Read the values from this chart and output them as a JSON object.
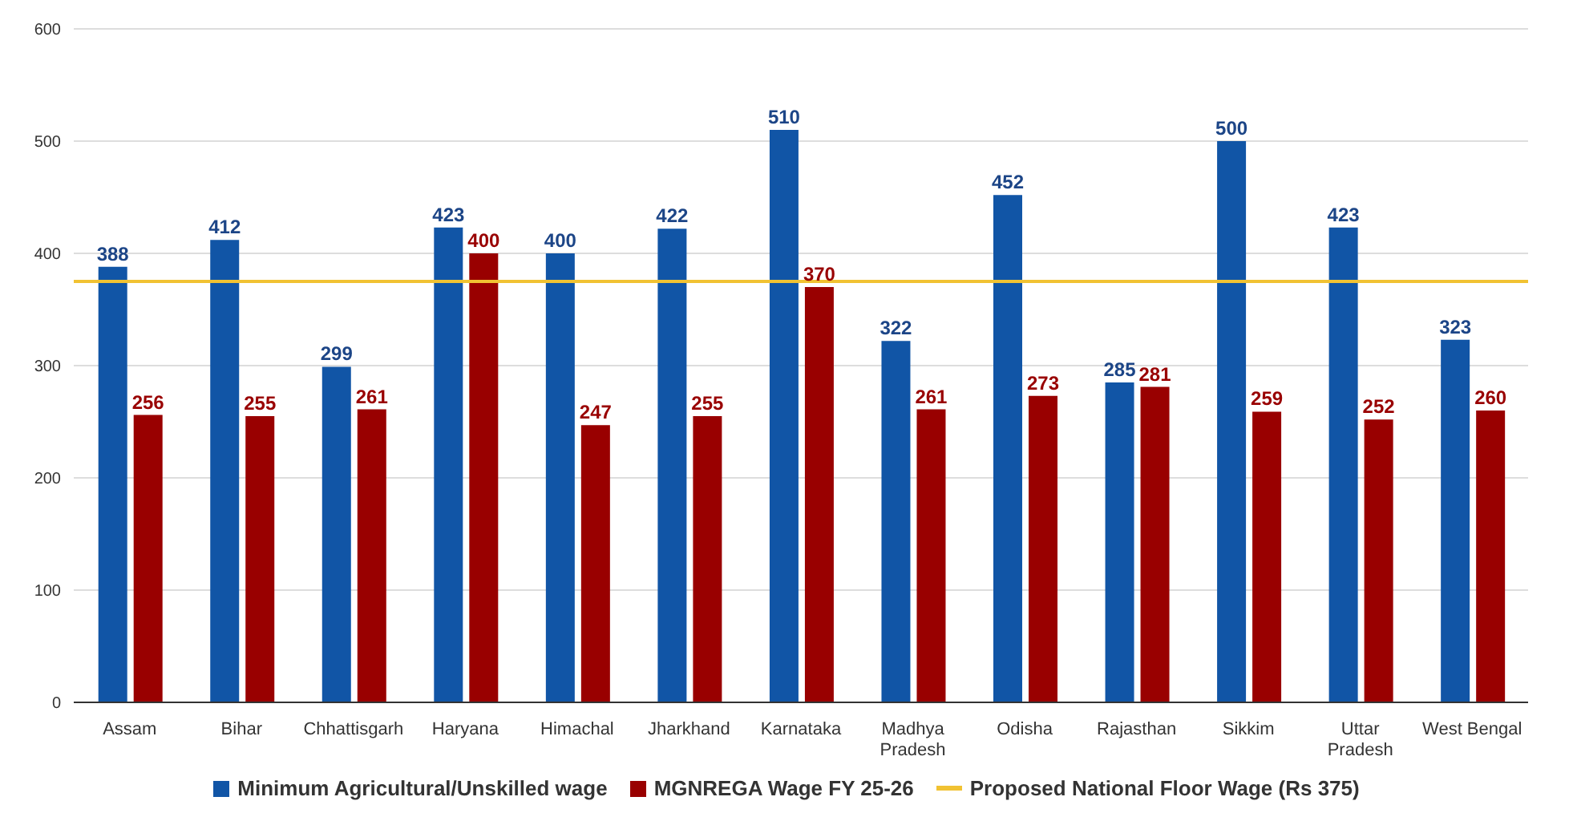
{
  "chart_data": {
    "type": "bar",
    "categories": [
      "Assam",
      "Bihar",
      "Chhattisgarh",
      "Haryana",
      "Himachal",
      "Jharkhand",
      "Karnataka",
      "Madhya Pradesh",
      "Odisha",
      "Rajasthan",
      "Sikkim",
      "Uttar Pradesh",
      "West Bengal"
    ],
    "series": [
      {
        "name": "Minimum Agricultural/Unskilled wage",
        "color": "#1155a6",
        "values": [
          388,
          412,
          299,
          423,
          400,
          422,
          510,
          322,
          452,
          285,
          500,
          423,
          323
        ]
      },
      {
        "name": "MGNREGA Wage FY 25-26",
        "color": "#990000",
        "values": [
          256,
          255,
          261,
          400,
          247,
          255,
          370,
          261,
          273,
          281,
          259,
          252,
          260
        ]
      }
    ],
    "ref_lines": [
      {
        "axis": "y",
        "value": 375,
        "label": "Proposed National Floor Wage (Rs 375)",
        "color": "#f1c232"
      }
    ],
    "ylim": [
      0,
      600
    ],
    "yticks": [
      0,
      100,
      200,
      300,
      400,
      500,
      600
    ],
    "grid": "y",
    "legend": "bottom",
    "data_labels": true
  }
}
